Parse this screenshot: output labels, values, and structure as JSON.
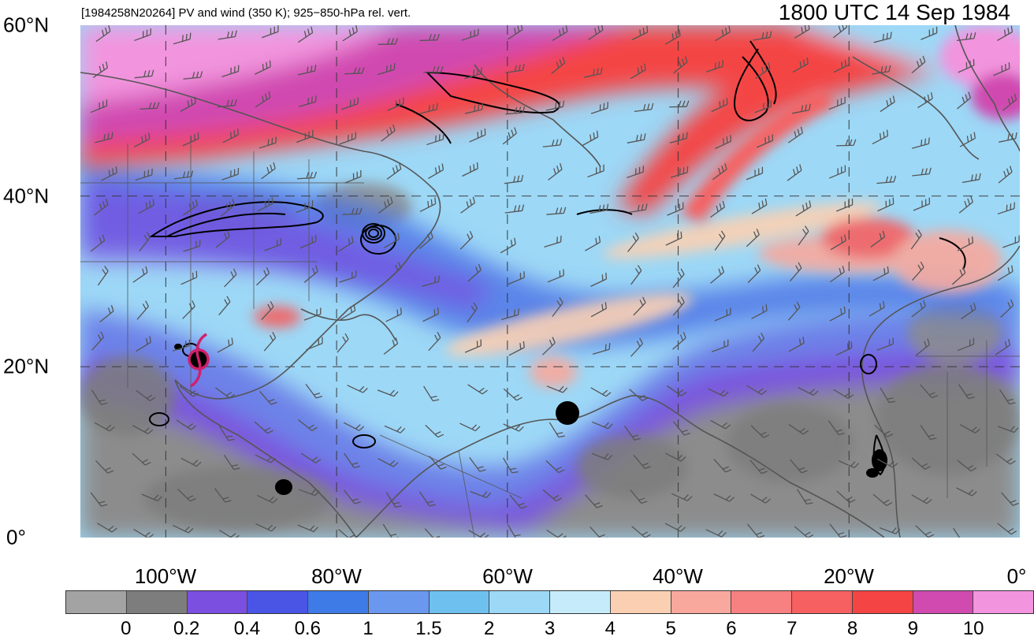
{
  "header": {
    "left_title": "[1984258N20264] PV and wind (350 K); 925−850-hPa rel. vert.",
    "right_title": "1800 UTC 14 Sep 1984"
  },
  "axes": {
    "lat_labels": [
      {
        "value": 60,
        "label": "60°N"
      },
      {
        "value": 40,
        "label": "40°N"
      },
      {
        "value": 20,
        "label": "20°N"
      },
      {
        "value": 0,
        "label": "0°"
      }
    ],
    "lon_labels": [
      {
        "value": -100,
        "label": "100°W"
      },
      {
        "value": -80,
        "label": "80°W"
      },
      {
        "value": -60,
        "label": "60°W"
      },
      {
        "value": -40,
        "label": "40°W"
      },
      {
        "value": -20,
        "label": "20°W"
      },
      {
        "value": 0,
        "label": "0°"
      }
    ],
    "lon_range": [
      -110,
      0
    ],
    "lat_range": [
      0,
      60
    ],
    "grid": true
  },
  "colorbar": {
    "colors": [
      "#a3a3a3",
      "#7d7d7d",
      "#7b4fe0",
      "#4a55e6",
      "#3f7be6",
      "#6a98ee",
      "#6ec0ee",
      "#9dd8f6",
      "#c6ecfb",
      "#fbd0b2",
      "#f8a89c",
      "#f78080",
      "#f66060",
      "#f44444",
      "#d04ab0",
      "#f294de"
    ],
    "labels": [
      "0",
      "0.2",
      "0.4",
      "0.6",
      "1",
      "1.5",
      "2",
      "3",
      "4",
      "5",
      "6",
      "7",
      "8",
      "9",
      "10"
    ]
  },
  "storm_track": {
    "lon": -96.2,
    "lat": 20.6,
    "color": "#d0206a"
  },
  "colors": {
    "background_pv": "#9dd8f6",
    "contour": "#000000",
    "coast": "#555555",
    "barb": "#555555"
  }
}
